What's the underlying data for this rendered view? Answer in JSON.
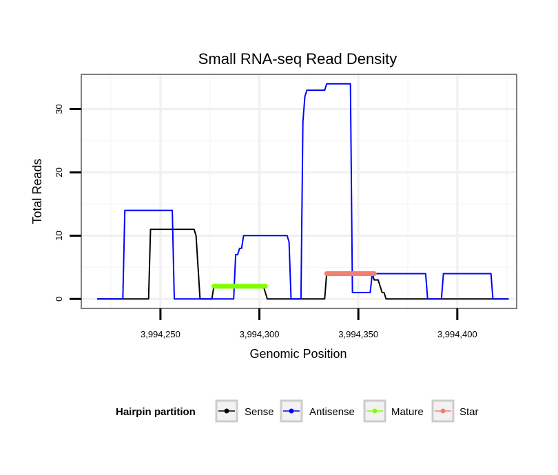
{
  "chart_data": {
    "type": "line",
    "title": "Small RNA-seq Read Density",
    "xlabel": "Genomic Position",
    "ylabel": "Total Reads",
    "xlim": [
      3994210,
      3994430
    ],
    "ylim": [
      -1.5,
      35.5
    ],
    "x_ticks": [
      3994250,
      3994300,
      3994350,
      3994400
    ],
    "x_tick_labels": [
      "3,994,250",
      "3,994,300",
      "3,994,350",
      "3,994,400"
    ],
    "y_ticks": [
      0,
      10,
      20,
      30
    ],
    "y_tick_labels": [
      "0",
      "10",
      "20",
      "30"
    ],
    "grid": true,
    "legend": {
      "title": "Hairpin partition",
      "position": "bottom",
      "entries": [
        "Sense",
        "Antisense",
        "Mature",
        "Star"
      ]
    },
    "series": [
      {
        "name": "Sense",
        "color": "#000000",
        "x": [
          3994218,
          3994244,
          3994245,
          3994247,
          3994267,
          3994268,
          3994269,
          3994270,
          3994272,
          3994276,
          3994277,
          3994278,
          3994302,
          3994303,
          3994304,
          3994305,
          3994333,
          3994334,
          3994335,
          3994357,
          3994358,
          3994360,
          3994361,
          3994362,
          3994363,
          3994364,
          3994426
        ],
        "values": [
          0,
          0,
          11,
          11,
          11,
          10,
          5,
          0,
          0,
          0,
          2,
          2,
          2,
          1,
          0,
          0,
          0,
          4,
          4,
          4,
          3,
          3,
          2,
          1,
          1,
          0,
          0
        ]
      },
      {
        "name": "Antisense",
        "color": "#0000ff",
        "x": [
          3994218,
          3994231,
          3994232,
          3994256,
          3994257,
          3994287,
          3994288,
          3994289,
          3994290,
          3994291,
          3994292,
          3994293,
          3994314,
          3994315,
          3994316,
          3994317,
          3994321,
          3994322,
          3994323,
          3994324,
          3994325,
          3994333,
          3994334,
          3994346,
          3994347,
          3994356,
          3994357,
          3994384,
          3994385,
          3994392,
          3994393,
          3994417,
          3994418,
          3994426
        ],
        "values": [
          0,
          0,
          14,
          14,
          0,
          0,
          7,
          7,
          8,
          8,
          10,
          10,
          10,
          9,
          0,
          0,
          0,
          28,
          32,
          33,
          33,
          33,
          34,
          34,
          1,
          1,
          4,
          4,
          0,
          0,
          4,
          4,
          0,
          0
        ]
      },
      {
        "name": "Mature",
        "color": "#7fff00",
        "x": [
          3994277,
          3994303
        ],
        "values": [
          2,
          2
        ]
      },
      {
        "name": "Star",
        "color": "#f08070",
        "x": [
          3994334,
          3994358
        ],
        "values": [
          4,
          4
        ]
      }
    ]
  }
}
